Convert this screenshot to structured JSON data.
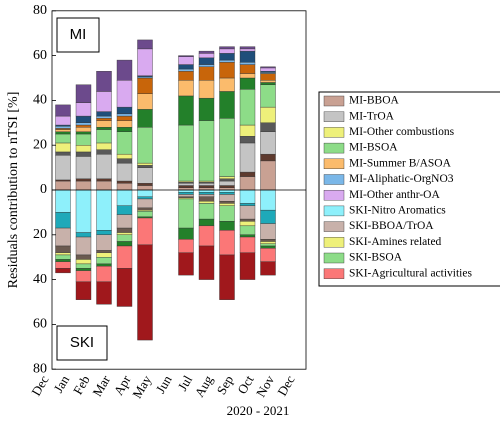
{
  "chart_data": {
    "type": "diverging-stacked-bar",
    "y_label": "Residuals contribution to nTSI [%]",
    "x_label": "2020 - 2021",
    "top_label": "MI",
    "bottom_label": "SKI",
    "categories": [
      "Dec",
      "Jan",
      "Feb",
      "Mar",
      "Apr",
      "May",
      "Jun",
      "Jul",
      "Aug",
      "Sep",
      "Oct",
      "Nov",
      "Dec"
    ],
    "ylim": [
      -80,
      80
    ],
    "yticks": [
      {
        "value": -80,
        "label": "80"
      },
      {
        "value": -60,
        "label": "60"
      },
      {
        "value": -40,
        "label": "40"
      },
      {
        "value": -20,
        "label": "20"
      },
      0,
      20,
      40,
      60,
      80
    ],
    "legend": "right",
    "series": [
      {
        "name": "MI-BBOA",
        "color": "#c9a193",
        "values": [
          null,
          4,
          4,
          4,
          3,
          2,
          null,
          1,
          1,
          1,
          6,
          13,
          null
        ]
      },
      {
        "color": "#5e3a2e",
        "values": [
          null,
          0.5,
          1,
          1,
          1,
          1,
          null,
          1,
          1,
          1,
          2,
          3,
          null
        ]
      },
      {
        "name": "MI-TrOA",
        "color": "#c4c4c4",
        "values": [
          null,
          11,
          10,
          11,
          8,
          7,
          null,
          1,
          1,
          2,
          13,
          10,
          null
        ]
      },
      {
        "color": "#595959",
        "values": [
          null,
          1.5,
          2,
          2,
          2,
          1,
          null,
          0.5,
          0.5,
          1,
          3,
          4,
          null
        ]
      },
      {
        "name": "MI-Other combustions",
        "color": "#eef07a",
        "values": [
          null,
          4,
          3,
          3,
          2,
          1,
          null,
          0.5,
          0.5,
          1,
          5,
          7,
          null
        ]
      },
      {
        "name": "MI-BSOA",
        "color": "#8ddc88",
        "values": [
          null,
          4,
          5,
          6,
          10,
          16,
          null,
          25,
          27,
          26,
          16,
          10,
          null
        ]
      },
      {
        "color": "#23802a",
        "values": [
          null,
          1,
          1,
          1,
          2,
          8,
          null,
          13,
          10,
          12,
          5,
          1,
          null
        ]
      },
      {
        "name": "MI-Summer B/ASOA",
        "color": "#fbbb6c",
        "values": [
          null,
          1,
          2,
          3,
          3,
          7,
          null,
          7,
          8,
          6,
          2,
          1,
          null
        ]
      },
      {
        "color": "#c8650a",
        "values": [
          null,
          0.5,
          1,
          1,
          2,
          7,
          null,
          4,
          6,
          7,
          4,
          3,
          null
        ]
      },
      {
        "name": "MI-Aliphatic-OrgNO3",
        "color": "#7ab7e8",
        "values": [
          null,
          1,
          1,
          1,
          1,
          0.5,
          null,
          1,
          1,
          1,
          1,
          0.5,
          null
        ]
      },
      {
        "color": "#1f4e7a",
        "values": [
          null,
          0.5,
          3,
          2,
          3,
          0.5,
          null,
          2,
          3,
          3,
          5,
          0.5,
          null
        ]
      },
      {
        "name": "MI-Other anthr-OA",
        "color": "#d9aaf0",
        "values": [
          null,
          4,
          6,
          9,
          12,
          12,
          null,
          3.5,
          2,
          2,
          1,
          1.5,
          null
        ]
      },
      {
        "color": "#6c4a8c",
        "values": [
          null,
          5,
          8,
          9,
          9,
          4,
          null,
          0.5,
          1,
          1,
          1,
          0.5,
          null
        ]
      },
      {
        "name": "SKI-Nitro Aromatics",
        "color": "#8ef0fb",
        "values": [
          null,
          -10,
          -19,
          -18,
          -7,
          -3,
          null,
          -1,
          -1,
          -1,
          -6,
          -9,
          null
        ]
      },
      {
        "color": "#1ea9b9",
        "values": [
          null,
          -7,
          -2,
          -2,
          -4,
          -1,
          null,
          -1,
          -1,
          -1,
          -1,
          -6,
          null
        ]
      },
      {
        "name": "SKI-BBOA/TrOA",
        "color": "#c8b1aa",
        "values": [
          null,
          -8,
          -8,
          -7,
          -6,
          -4,
          null,
          -1,
          -1,
          -3,
          -6,
          -7,
          null
        ]
      },
      {
        "color": "#6b5a50",
        "values": [
          null,
          -3,
          -2,
          -1,
          -2,
          -1,
          null,
          -0.5,
          -2,
          -1,
          -1,
          -1,
          null
        ]
      },
      {
        "name": "SKI-Amines related",
        "color": "#eef07a",
        "values": [
          null,
          -1,
          -2,
          -2,
          -1,
          -0.5,
          null,
          -0.5,
          -1,
          -1,
          -2,
          -1,
          null
        ]
      },
      {
        "name": "SKI-BSOA",
        "color": "#8ddc88",
        "values": [
          null,
          -2,
          -2,
          -3,
          -3,
          -2.5,
          null,
          -13,
          -7,
          -7,
          -4,
          -1,
          null
        ]
      },
      {
        "color": "#23802a",
        "values": [
          null,
          -1,
          -1,
          -1,
          -2,
          -0.5,
          null,
          -5,
          -3,
          -4,
          -1,
          -1,
          null
        ]
      },
      {
        "name": "SKI-Agricultural activities",
        "color": "#fb7777",
        "values": [
          null,
          -3,
          -5,
          -7,
          -10,
          -12,
          null,
          -6,
          -9,
          -11,
          -7,
          -6,
          null
        ]
      },
      {
        "color": "#a0181c",
        "values": [
          null,
          -2,
          -8,
          -10,
          -17,
          -42.5,
          null,
          -10,
          -15,
          -20,
          -12,
          -6,
          null
        ]
      }
    ]
  }
}
